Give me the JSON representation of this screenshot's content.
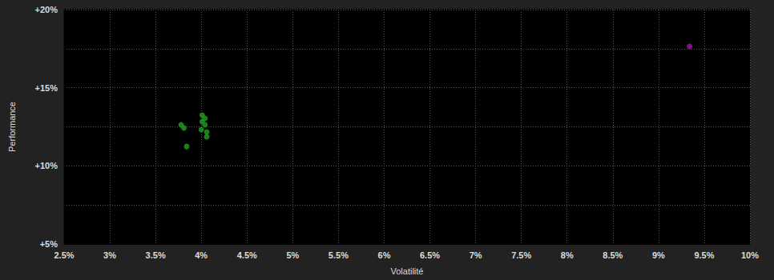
{
  "chart_data": {
    "type": "scatter",
    "x_label": "Volatilité",
    "y_label": "Performance",
    "xlim": [
      2.5,
      10
    ],
    "xticks": [
      {
        "value": 2.5,
        "label": "2.5%"
      },
      {
        "value": 3,
        "label": "3%"
      },
      {
        "value": 3.5,
        "label": "3.5%"
      },
      {
        "value": 4,
        "label": "4%"
      },
      {
        "value": 4.5,
        "label": "4.5%"
      },
      {
        "value": 5,
        "label": "5%"
      },
      {
        "value": 5.5,
        "label": "5.5%"
      },
      {
        "value": 6,
        "label": "6%"
      },
      {
        "value": 6.5,
        "label": "6.5%"
      },
      {
        "value": 7,
        "label": "7%"
      },
      {
        "value": 7.5,
        "label": "7.5%"
      },
      {
        "value": 8,
        "label": "8%"
      },
      {
        "value": 8.5,
        "label": "8.5%"
      },
      {
        "value": 9,
        "label": "9%"
      },
      {
        "value": 9.5,
        "label": "9.5%"
      },
      {
        "value": 10,
        "label": "10%"
      }
    ],
    "ylim": [
      5,
      20
    ],
    "yticks": [
      {
        "value": 5,
        "label": "+5%"
      },
      {
        "value": 10,
        "label": "+10%"
      },
      {
        "value": 15,
        "label": "+15%"
      },
      {
        "value": 20,
        "label": "+20%"
      }
    ],
    "grid": true,
    "series": [
      {
        "color": "#22a022",
        "x": [
          3.78,
          3.81,
          3.84,
          4.01,
          4.04,
          4.01,
          4.04,
          4.0,
          4.06,
          4.06
        ],
        "y": [
          12.63,
          12.42,
          11.24,
          13.24,
          13.04,
          12.83,
          12.63,
          12.32,
          12.17,
          11.86
        ]
      },
      {
        "color": "#a0189f",
        "x": [
          9.34
        ],
        "y": [
          17.64
        ]
      }
    ]
  }
}
